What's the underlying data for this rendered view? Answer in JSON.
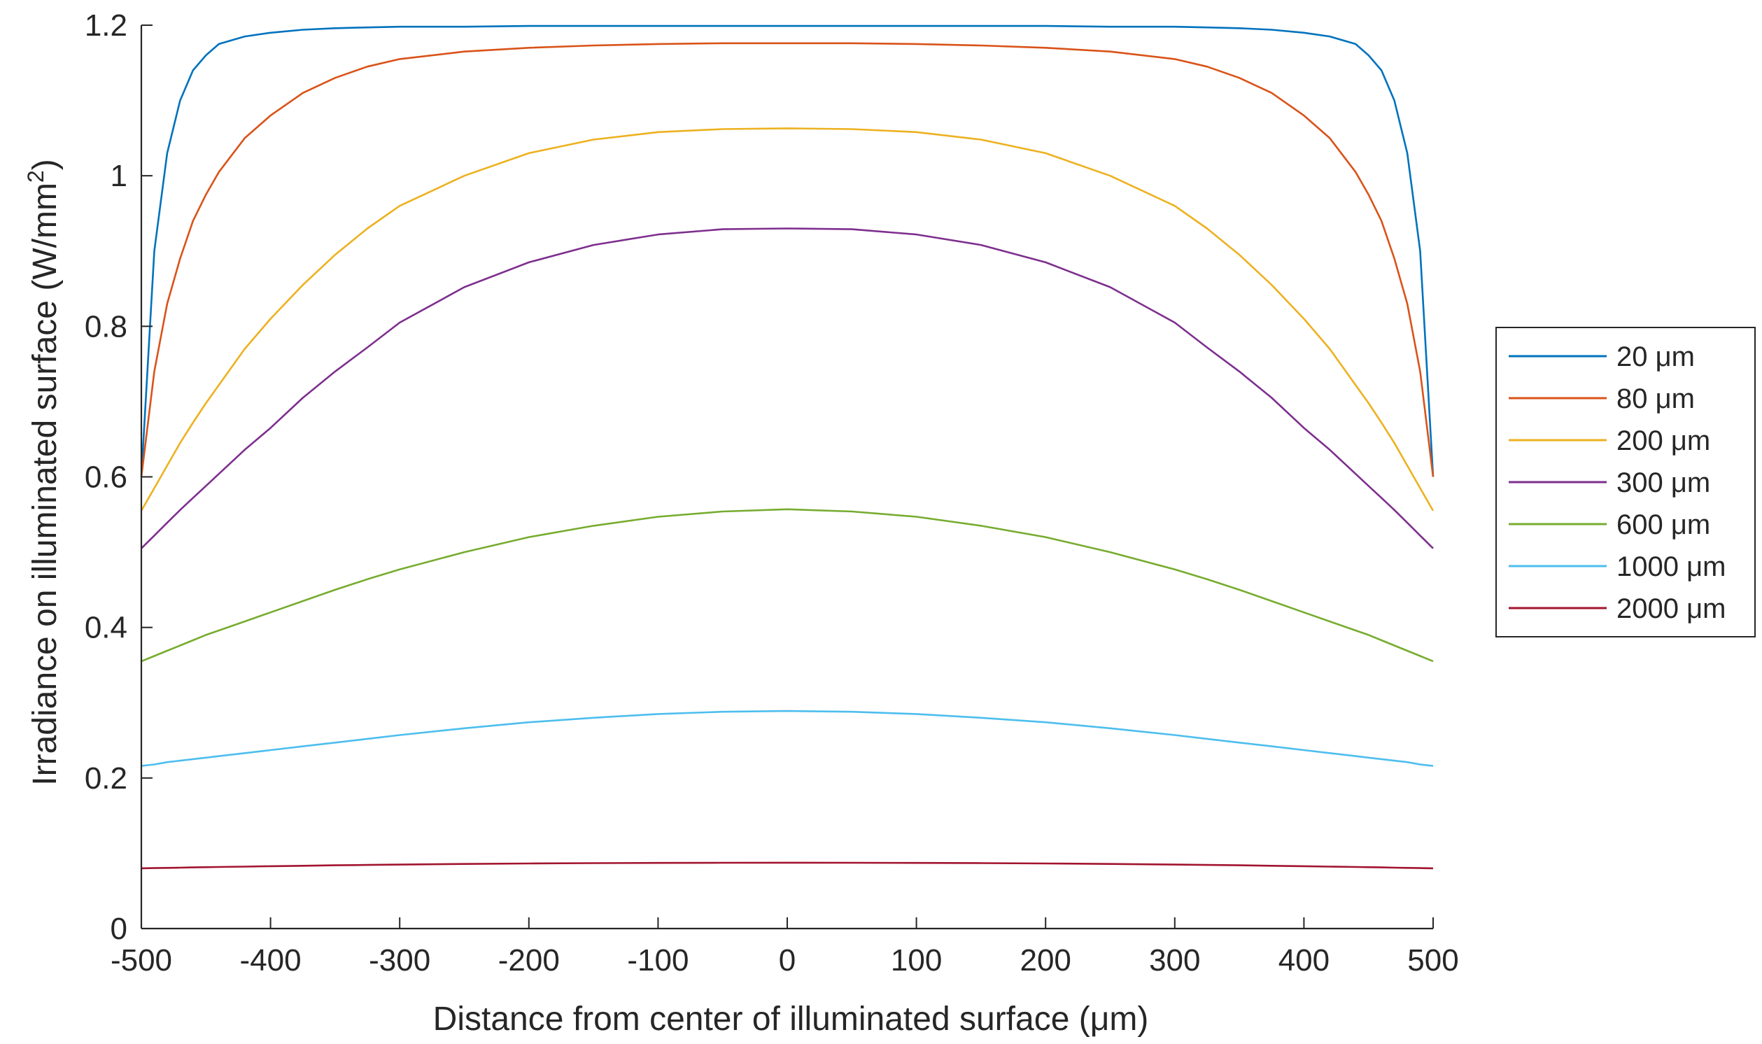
{
  "chart_data": {
    "type": "line",
    "title": "",
    "xlabel": "Distance from center of illuminated surface (μm)",
    "ylabel_main": "Irradiance on illuminated surface (W/mm",
    "ylabel_sup": "2",
    "ylabel_close": ")",
    "xlim": [
      -500,
      500
    ],
    "ylim": [
      0,
      1.2
    ],
    "x_ticks": [
      -500,
      -400,
      -300,
      -200,
      -100,
      0,
      100,
      200,
      300,
      400,
      500
    ],
    "x_tick_labels": [
      "-500",
      "-400",
      "-300",
      "-200",
      "-100",
      "0",
      "100",
      "200",
      "300",
      "400",
      "500"
    ],
    "y_ticks": [
      0,
      0.2,
      0.4,
      0.6,
      0.8,
      1,
      1.2
    ],
    "y_tick_labels": [
      "0",
      "0.2",
      "0.4",
      "0.6",
      "0.8",
      "1",
      "1.2"
    ],
    "grid": false,
    "legend_position": "outside-right",
    "x": [
      -500,
      -490,
      -480,
      -470,
      -460,
      -450,
      -440,
      -420,
      -400,
      -375,
      -350,
      -325,
      -300,
      -250,
      -200,
      -150,
      -100,
      -50,
      0,
      50,
      100,
      150,
      200,
      250,
      300,
      325,
      350,
      375,
      400,
      420,
      440,
      450,
      460,
      470,
      480,
      490,
      500
    ],
    "series": [
      {
        "name": "20 μm",
        "color": "#0072BD",
        "values": [
          0.6,
          0.9,
          1.03,
          1.1,
          1.14,
          1.16,
          1.175,
          1.185,
          1.19,
          1.194,
          1.196,
          1.197,
          1.198,
          1.198,
          1.199,
          1.199,
          1.199,
          1.199,
          1.199,
          1.199,
          1.199,
          1.199,
          1.199,
          1.198,
          1.198,
          1.197,
          1.196,
          1.194,
          1.19,
          1.185,
          1.175,
          1.16,
          1.14,
          1.1,
          1.03,
          0.9,
          0.6
        ]
      },
      {
        "name": "80 μm",
        "color": "#D95319",
        "values": [
          0.6,
          0.74,
          0.83,
          0.89,
          0.94,
          0.975,
          1.005,
          1.05,
          1.08,
          1.11,
          1.13,
          1.145,
          1.155,
          1.165,
          1.17,
          1.173,
          1.175,
          1.176,
          1.176,
          1.176,
          1.175,
          1.173,
          1.17,
          1.165,
          1.155,
          1.145,
          1.13,
          1.11,
          1.08,
          1.05,
          1.005,
          0.975,
          0.94,
          0.89,
          0.83,
          0.74,
          0.6
        ]
      },
      {
        "name": "200 μm",
        "color": "#EDB120",
        "values": [
          0.555,
          0.585,
          0.615,
          0.645,
          0.672,
          0.698,
          0.722,
          0.77,
          0.81,
          0.855,
          0.895,
          0.93,
          0.96,
          1.0,
          1.03,
          1.048,
          1.058,
          1.062,
          1.063,
          1.062,
          1.058,
          1.048,
          1.03,
          1.0,
          0.96,
          0.93,
          0.895,
          0.855,
          0.81,
          0.77,
          0.722,
          0.698,
          0.672,
          0.645,
          0.615,
          0.585,
          0.555
        ]
      },
      {
        "name": "300 μm",
        "color": "#7E2F8E",
        "values": [
          0.505,
          0.522,
          0.539,
          0.556,
          0.572,
          0.588,
          0.604,
          0.636,
          0.665,
          0.705,
          0.74,
          0.772,
          0.805,
          0.852,
          0.885,
          0.908,
          0.922,
          0.929,
          0.93,
          0.929,
          0.922,
          0.908,
          0.885,
          0.852,
          0.805,
          0.772,
          0.74,
          0.705,
          0.665,
          0.636,
          0.604,
          0.588,
          0.572,
          0.556,
          0.539,
          0.522,
          0.505
        ]
      },
      {
        "name": "600 μm",
        "color": "#77AC30",
        "values": [
          0.355,
          0.362,
          0.369,
          0.376,
          0.383,
          0.39,
          0.396,
          0.408,
          0.42,
          0.435,
          0.45,
          0.464,
          0.477,
          0.5,
          0.52,
          0.535,
          0.547,
          0.554,
          0.557,
          0.554,
          0.547,
          0.535,
          0.52,
          0.5,
          0.477,
          0.464,
          0.45,
          0.435,
          0.42,
          0.408,
          0.396,
          0.39,
          0.383,
          0.376,
          0.369,
          0.362,
          0.355
        ]
      },
      {
        "name": "1000 μm",
        "color": "#4DBEEE",
        "values": [
          0.216,
          0.218,
          0.221,
          0.223,
          0.225,
          0.227,
          0.229,
          0.233,
          0.237,
          0.242,
          0.247,
          0.252,
          0.257,
          0.266,
          0.274,
          0.28,
          0.285,
          0.288,
          0.289,
          0.288,
          0.285,
          0.28,
          0.274,
          0.266,
          0.257,
          0.252,
          0.247,
          0.242,
          0.237,
          0.233,
          0.229,
          0.227,
          0.225,
          0.223,
          0.221,
          0.218,
          0.216
        ]
      },
      {
        "name": "2000 μm",
        "color": "#A2142F",
        "values": [
          0.08,
          0.0803,
          0.0806,
          0.0809,
          0.0812,
          0.0815,
          0.0818,
          0.0823,
          0.0828,
          0.0834,
          0.084,
          0.0845,
          0.085,
          0.0858,
          0.0864,
          0.0869,
          0.0872,
          0.0874,
          0.0875,
          0.0874,
          0.0872,
          0.0869,
          0.0864,
          0.0858,
          0.085,
          0.0845,
          0.084,
          0.0834,
          0.0828,
          0.0823,
          0.0818,
          0.0815,
          0.0812,
          0.0809,
          0.0806,
          0.0803,
          0.08
        ]
      }
    ]
  }
}
